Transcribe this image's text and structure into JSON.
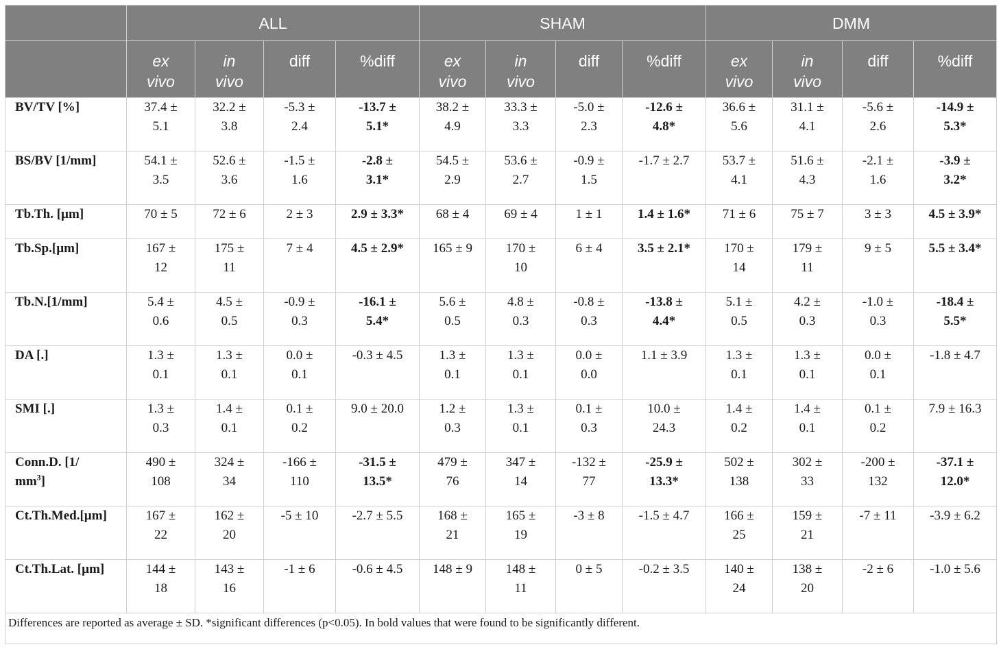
{
  "header": {
    "groups": [
      "ALL",
      "SHAM",
      "DMM"
    ],
    "subcolumns": [
      {
        "line1": "ex",
        "line2": "vivo",
        "italic": true
      },
      {
        "line1": "in",
        "line2": "vivo",
        "italic": true
      },
      {
        "line1": "diff",
        "line2": "",
        "italic": false
      },
      {
        "line1": "%diff",
        "line2": "",
        "italic": false
      }
    ]
  },
  "rows": [
    {
      "label_html": "BV/TV [%]",
      "tall": true,
      "cells": [
        {
          "l1": "37.4 ±",
          "l2": "5.1"
        },
        {
          "l1": "32.2 ±",
          "l2": "3.8"
        },
        {
          "l1": "-5.3 ±",
          "l2": "2.4"
        },
        {
          "l1": "-13.7 ±",
          "l2": "5.1*",
          "sig": true
        },
        {
          "l1": "38.2 ±",
          "l2": "4.9"
        },
        {
          "l1": "33.3 ±",
          "l2": "3.3"
        },
        {
          "l1": "-5.0 ±",
          "l2": "2.3"
        },
        {
          "l1": "-12.6 ±",
          "l2": "4.8*",
          "sig": true
        },
        {
          "l1": "36.6 ±",
          "l2": "5.6"
        },
        {
          "l1": "31.1 ±",
          "l2": "4.1"
        },
        {
          "l1": "-5.6 ±",
          "l2": "2.6"
        },
        {
          "l1": "-14.9 ±",
          "l2": "5.3*",
          "sig": true
        }
      ]
    },
    {
      "label_html": "BS/BV [1/mm]",
      "tall": true,
      "cells": [
        {
          "l1": "54.1 ±",
          "l2": "3.5"
        },
        {
          "l1": "52.6 ±",
          "l2": "3.6"
        },
        {
          "l1": "-1.5 ±",
          "l2": "1.6"
        },
        {
          "l1": "-2.8 ±",
          "l2": "3.1*",
          "sig": true
        },
        {
          "l1": "54.5 ±",
          "l2": "2.9"
        },
        {
          "l1": "53.6 ±",
          "l2": "2.7"
        },
        {
          "l1": "-0.9 ±",
          "l2": "1.5"
        },
        {
          "l1": "-1.7 ± 2.7",
          "l2": ""
        },
        {
          "l1": "53.7 ±",
          "l2": "4.1"
        },
        {
          "l1": "51.6 ±",
          "l2": "4.3"
        },
        {
          "l1": "-2.1 ±",
          "l2": "1.6"
        },
        {
          "l1": "-3.9 ±",
          "l2": "3.2*",
          "sig": true
        }
      ]
    },
    {
      "label_html": "Tb.Th. [µm]",
      "tall": false,
      "cells": [
        {
          "l1": "70 ± 5",
          "l2": ""
        },
        {
          "l1": "72 ± 6",
          "l2": ""
        },
        {
          "l1": "2 ± 3",
          "l2": ""
        },
        {
          "l1": "2.9 ± 3.3*",
          "l2": "",
          "sig": true
        },
        {
          "l1": "68 ± 4",
          "l2": ""
        },
        {
          "l1": "69 ± 4",
          "l2": ""
        },
        {
          "l1": "1 ± 1",
          "l2": ""
        },
        {
          "l1": "1.4 ± 1.6*",
          "l2": "",
          "sig": true
        },
        {
          "l1": "71 ± 6",
          "l2": ""
        },
        {
          "l1": "75 ± 7",
          "l2": ""
        },
        {
          "l1": "3 ± 3",
          "l2": ""
        },
        {
          "l1": "4.5 ± 3.9*",
          "l2": "",
          "sig": true
        }
      ]
    },
    {
      "label_html": "Tb.Sp.[µm]",
      "tall": true,
      "cells": [
        {
          "l1": "167 ±",
          "l2": "12"
        },
        {
          "l1": "175 ±",
          "l2": "11"
        },
        {
          "l1": "7 ± 4",
          "l2": ""
        },
        {
          "l1": "4.5 ± 2.9*",
          "l2": "",
          "sig": true
        },
        {
          "l1": "165 ± 9",
          "l2": ""
        },
        {
          "l1": "170 ±",
          "l2": "10"
        },
        {
          "l1": "6 ± 4",
          "l2": ""
        },
        {
          "l1": "3.5 ± 2.1*",
          "l2": "",
          "sig": true
        },
        {
          "l1": "170 ±",
          "l2": "14"
        },
        {
          "l1": "179 ±",
          "l2": "11"
        },
        {
          "l1": "9 ± 5",
          "l2": ""
        },
        {
          "l1": "5.5 ± 3.4*",
          "l2": "",
          "sig": true
        }
      ]
    },
    {
      "label_html": "Tb.N.[1/mm]",
      "tall": true,
      "cells": [
        {
          "l1": "5.4 ±",
          "l2": "0.6"
        },
        {
          "l1": "4.5 ±",
          "l2": "0.5"
        },
        {
          "l1": "-0.9 ±",
          "l2": "0.3"
        },
        {
          "l1": "-16.1 ±",
          "l2": "5.4*",
          "sig": true
        },
        {
          "l1": "5.6 ±",
          "l2": "0.5"
        },
        {
          "l1": "4.8 ±",
          "l2": "0.3"
        },
        {
          "l1": "-0.8 ±",
          "l2": "0.3"
        },
        {
          "l1": "-13.8 ±",
          "l2": "4.4*",
          "sig": true
        },
        {
          "l1": "5.1 ±",
          "l2": "0.5"
        },
        {
          "l1": "4.2 ±",
          "l2": "0.3"
        },
        {
          "l1": "-1.0 ±",
          "l2": "0.3"
        },
        {
          "l1": "-18.4 ±",
          "l2": "5.5*",
          "sig": true
        }
      ]
    },
    {
      "label_html": "DA [.]",
      "tall": true,
      "cells": [
        {
          "l1": "1.3 ±",
          "l2": "0.1"
        },
        {
          "l1": "1.3 ±",
          "l2": "0.1"
        },
        {
          "l1": "0.0 ±",
          "l2": "0.1"
        },
        {
          "l1": "-0.3 ± 4.5",
          "l2": ""
        },
        {
          "l1": "1.3 ±",
          "l2": "0.1"
        },
        {
          "l1": "1.3 ±",
          "l2": "0.1"
        },
        {
          "l1": "0.0 ±",
          "l2": "0.0"
        },
        {
          "l1": "1.1 ± 3.9",
          "l2": ""
        },
        {
          "l1": "1.3 ±",
          "l2": "0.1"
        },
        {
          "l1": "1.3 ±",
          "l2": "0.1"
        },
        {
          "l1": "0.0 ±",
          "l2": "0.1"
        },
        {
          "l1": "-1.8 ± 4.7",
          "l2": ""
        }
      ]
    },
    {
      "label_html": "SMI [.]",
      "tall": true,
      "cells": [
        {
          "l1": "1.3 ±",
          "l2": "0.3"
        },
        {
          "l1": "1.4 ±",
          "l2": "0.1"
        },
        {
          "l1": "0.1 ±",
          "l2": "0.2"
        },
        {
          "l1": "9.0 ± 20.0",
          "l2": ""
        },
        {
          "l1": "1.2 ±",
          "l2": "0.3"
        },
        {
          "l1": "1.3 ±",
          "l2": "0.1"
        },
        {
          "l1": "0.1 ±",
          "l2": "0.3"
        },
        {
          "l1": "10.0 ±",
          "l2": "24.3"
        },
        {
          "l1": "1.4 ±",
          "l2": "0.2"
        },
        {
          "l1": "1.4 ±",
          "l2": "0.1"
        },
        {
          "l1": "0.1 ±",
          "l2": "0.2"
        },
        {
          "l1": "7.9 ± 16.3",
          "l2": ""
        }
      ]
    },
    {
      "label_html": "Conn.D. [1/<br>mm<sup style=\"font-size:12px;line-height:0\">3</sup>]",
      "tall": true,
      "cells": [
        {
          "l1": "490 ±",
          "l2": "108"
        },
        {
          "l1": "324 ±",
          "l2": "34"
        },
        {
          "l1": "-166 ±",
          "l2": "110"
        },
        {
          "l1": "-31.5 ±",
          "l2": "13.5*",
          "sig": true
        },
        {
          "l1": "479 ±",
          "l2": "76"
        },
        {
          "l1": "347 ±",
          "l2": "14"
        },
        {
          "l1": "-132 ±",
          "l2": "77"
        },
        {
          "l1": "-25.9 ±",
          "l2": "13.3*",
          "sig": true
        },
        {
          "l1": "502 ±",
          "l2": "138"
        },
        {
          "l1": "302 ±",
          "l2": "33"
        },
        {
          "l1": "-200 ±",
          "l2": "132"
        },
        {
          "l1": "-37.1 ±",
          "l2": "12.0*",
          "sig": true
        }
      ]
    },
    {
      "label_html": "Ct.Th.Med.[µm]",
      "tall": true,
      "cells": [
        {
          "l1": "167 ±",
          "l2": "22"
        },
        {
          "l1": "162 ±",
          "l2": "20"
        },
        {
          "l1": "-5 ± 10",
          "l2": ""
        },
        {
          "l1": "-2.7 ± 5.5",
          "l2": ""
        },
        {
          "l1": "168 ±",
          "l2": "21"
        },
        {
          "l1": "165 ±",
          "l2": "19"
        },
        {
          "l1": "-3 ± 8",
          "l2": ""
        },
        {
          "l1": "-1.5 ± 4.7",
          "l2": ""
        },
        {
          "l1": "166 ±",
          "l2": "25"
        },
        {
          "l1": "159 ±",
          "l2": "21"
        },
        {
          "l1": "-7 ± 11",
          "l2": ""
        },
        {
          "l1": "-3.9 ± 6.2",
          "l2": ""
        }
      ]
    },
    {
      "label_html": "Ct.Th.Lat. [µm]",
      "tall": true,
      "cells": [
        {
          "l1": "144 ±",
          "l2": "18"
        },
        {
          "l1": "143 ±",
          "l2": "16"
        },
        {
          "l1": "-1 ± 6",
          "l2": ""
        },
        {
          "l1": "-0.6 ± 4.5",
          "l2": ""
        },
        {
          "l1": "148 ± 9",
          "l2": ""
        },
        {
          "l1": "148 ±",
          "l2": "11"
        },
        {
          "l1": "0 ± 5",
          "l2": ""
        },
        {
          "l1": "-0.2 ± 3.5",
          "l2": ""
        },
        {
          "l1": "140 ±",
          "l2": "24"
        },
        {
          "l1": "138 ±",
          "l2": "20"
        },
        {
          "l1": "-2 ± 6",
          "l2": ""
        },
        {
          "l1": "-1.0 ± 5.6",
          "l2": ""
        }
      ]
    }
  ],
  "footnote": "Differences are reported as average ± SD. *significant differences (p<0.05). In bold values that were found to be significantly different."
}
